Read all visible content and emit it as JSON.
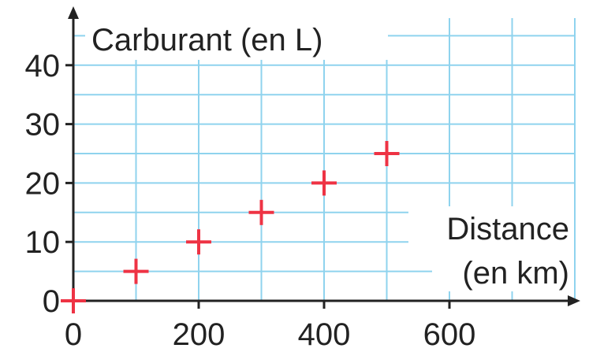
{
  "chart_data": {
    "type": "scatter",
    "ylabel": "Carburant (en L)",
    "xlabel_line1": "Distance",
    "xlabel_line2": "(en km)",
    "x_ticks": [
      "0",
      "200",
      "400",
      "600"
    ],
    "y_ticks": [
      "0",
      "10",
      "20",
      "30",
      "40"
    ],
    "xlim": [
      0,
      800
    ],
    "ylim": [
      0,
      48
    ],
    "grid": true,
    "points": [
      {
        "x": 0,
        "y": 0
      },
      {
        "x": 100,
        "y": 5
      },
      {
        "x": 200,
        "y": 10
      },
      {
        "x": 300,
        "y": 15
      },
      {
        "x": 400,
        "y": 20
      },
      {
        "x": 500,
        "y": 25
      }
    ],
    "colors": {
      "grid": "#8fd3ee",
      "axis": "#222222",
      "marker": "#ee3344",
      "background": "#ffffff"
    }
  }
}
